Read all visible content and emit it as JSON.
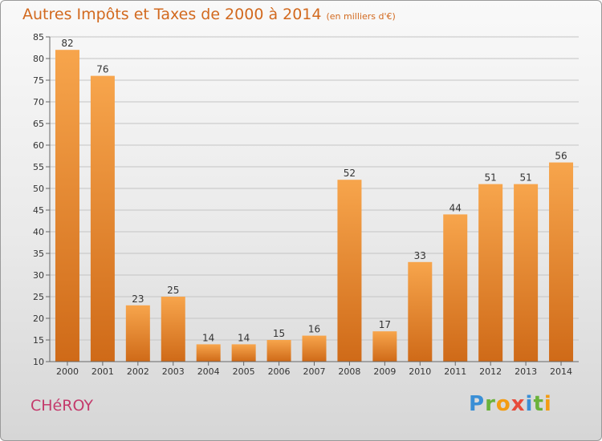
{
  "title": "Autres Impôts et Taxes de 2000 à 2014",
  "unit": "(en milliers d'€)",
  "commune": "CHéROY",
  "logo": {
    "letters": [
      "P",
      "r",
      "o",
      "x",
      "i",
      "t",
      "i"
    ],
    "colors": [
      "#3a8fd6",
      "#6ab23a",
      "#f39c12",
      "#e74c3c",
      "#3a8fd6",
      "#6ab23a",
      "#f39c12"
    ]
  },
  "colors": {
    "bar_light": "#f7a54c",
    "bar_dark": "#cf6a18",
    "title": "#d2691e",
    "commune": "#c43a6c"
  },
  "chart_data": {
    "type": "bar",
    "categories": [
      "2000",
      "2001",
      "2002",
      "2003",
      "2004",
      "2005",
      "2006",
      "2007",
      "2008",
      "2009",
      "2010",
      "2011",
      "2012",
      "2013",
      "2014"
    ],
    "values": [
      82,
      76,
      23,
      25,
      14,
      14,
      15,
      16,
      52,
      17,
      33,
      44,
      51,
      51,
      56
    ],
    "ylim": [
      10,
      85
    ],
    "yticks": [
      10,
      15,
      20,
      25,
      30,
      35,
      40,
      45,
      50,
      55,
      60,
      65,
      70,
      75,
      80,
      85
    ],
    "grid": true
  }
}
